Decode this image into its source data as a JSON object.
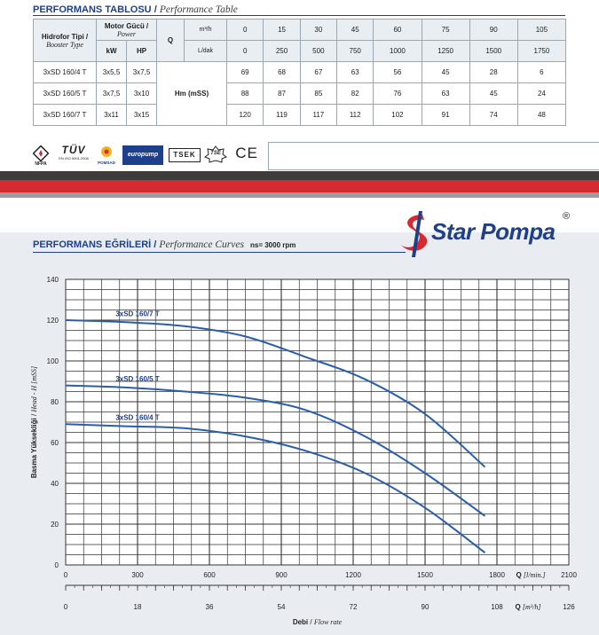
{
  "table_section": {
    "title_bold": "PERFORMANS TABLOSU",
    "title_sep": "/",
    "title_italic": "Performance Table"
  },
  "table": {
    "col_type_tr": "Hidrofor Tipi /",
    "col_type_en": "Booster Type",
    "col_motor_tr": "Motor Gücü /",
    "col_motor_en": "Power",
    "col_kw": "kW",
    "col_hp": "HP",
    "q_label": "Q",
    "unit_m3h": "m³/h",
    "unit_ldak": "L/dak",
    "hm_label": "Hm (mSS)",
    "q_m3h": [
      "0",
      "15",
      "30",
      "45",
      "60",
      "75",
      "90",
      "105"
    ],
    "q_ldak": [
      "0",
      "250",
      "500",
      "750",
      "1000",
      "1250",
      "1500",
      "1750"
    ],
    "rows": [
      {
        "type": "3xSD 160/4 T",
        "kw": "3x5,5",
        "hp": "3x7,5",
        "h": [
          "69",
          "68",
          "67",
          "63",
          "56",
          "45",
          "28",
          "6"
        ]
      },
      {
        "type": "3xSD 160/5 T",
        "kw": "3x7,5",
        "hp": "3x10",
        "h": [
          "88",
          "87",
          "85",
          "82",
          "76",
          "63",
          "45",
          "24"
        ]
      },
      {
        "type": "3xSD 160/7 T",
        "kw": "3x11",
        "hp": "3x15",
        "h": [
          "120",
          "119",
          "117",
          "112",
          "102",
          "91",
          "74",
          "48"
        ]
      }
    ]
  },
  "certifications": {
    "nfpa": "NFPA",
    "tuv": "TÜV",
    "tuv_sub": "EN ISO 9001:2008",
    "pomsad": "POMSAD",
    "europump": "europump",
    "tsek": "TSEK",
    "tse": "TSE",
    "ce": "CE"
  },
  "brand": {
    "name": "Star Pompa",
    "registered": "®"
  },
  "curve_section": {
    "title_bold": "PERFORMANS EĞRİLERİ",
    "title_sep": "/",
    "title_italic": "Performance Curves",
    "ns_label": "ns= 3000 rpm"
  },
  "colors": {
    "navy": "#1e3f8a",
    "curve": "#2a5ea8",
    "red": "#d42a30",
    "chart_bg": "#e9edf1"
  },
  "chart_data": {
    "type": "line",
    "ylabel_bold": "Basma Yüksekliği",
    "ylabel_sep": " / ",
    "ylabel_italic": "Head - H [mSS]",
    "xlabel_bold": "Debi",
    "xlabel_sep": " / ",
    "xlabel_italic": "Flow rate",
    "x_unit_top_bold": "Q",
    "x_unit_top_italic": "[l/min.]",
    "x_unit_bottom_bold": "Q",
    "x_unit_bottom_italic": "[m³/h]",
    "xlim_lmin": [
      0,
      2100
    ],
    "xlim_m3h": [
      0,
      126
    ],
    "ylim": [
      0,
      140
    ],
    "grid": true,
    "x_ticks_lmin": [
      0,
      300,
      600,
      900,
      1200,
      1500,
      1800,
      2100
    ],
    "x_ticks_m3h": [
      0,
      18,
      36,
      54,
      72,
      90,
      108,
      126
    ],
    "y_ticks": [
      0,
      20,
      40,
      60,
      80,
      100,
      120,
      140
    ],
    "series": [
      {
        "name": "3xSD 160/7 T",
        "x": [
          0,
          250,
          500,
          750,
          1000,
          1250,
          1500,
          1750
        ],
        "y": [
          120,
          119,
          117,
          112,
          102,
          91,
          74,
          48
        ]
      },
      {
        "name": "3xSD 160/5 T",
        "x": [
          0,
          250,
          500,
          750,
          1000,
          1250,
          1500,
          1750
        ],
        "y": [
          88,
          87,
          85,
          82,
          76,
          63,
          45,
          24
        ]
      },
      {
        "name": "3xSD 160/4 T",
        "x": [
          0,
          250,
          500,
          750,
          1000,
          1250,
          1500,
          1750
        ],
        "y": [
          69,
          68,
          67,
          63,
          56,
          45,
          28,
          6
        ]
      }
    ]
  }
}
